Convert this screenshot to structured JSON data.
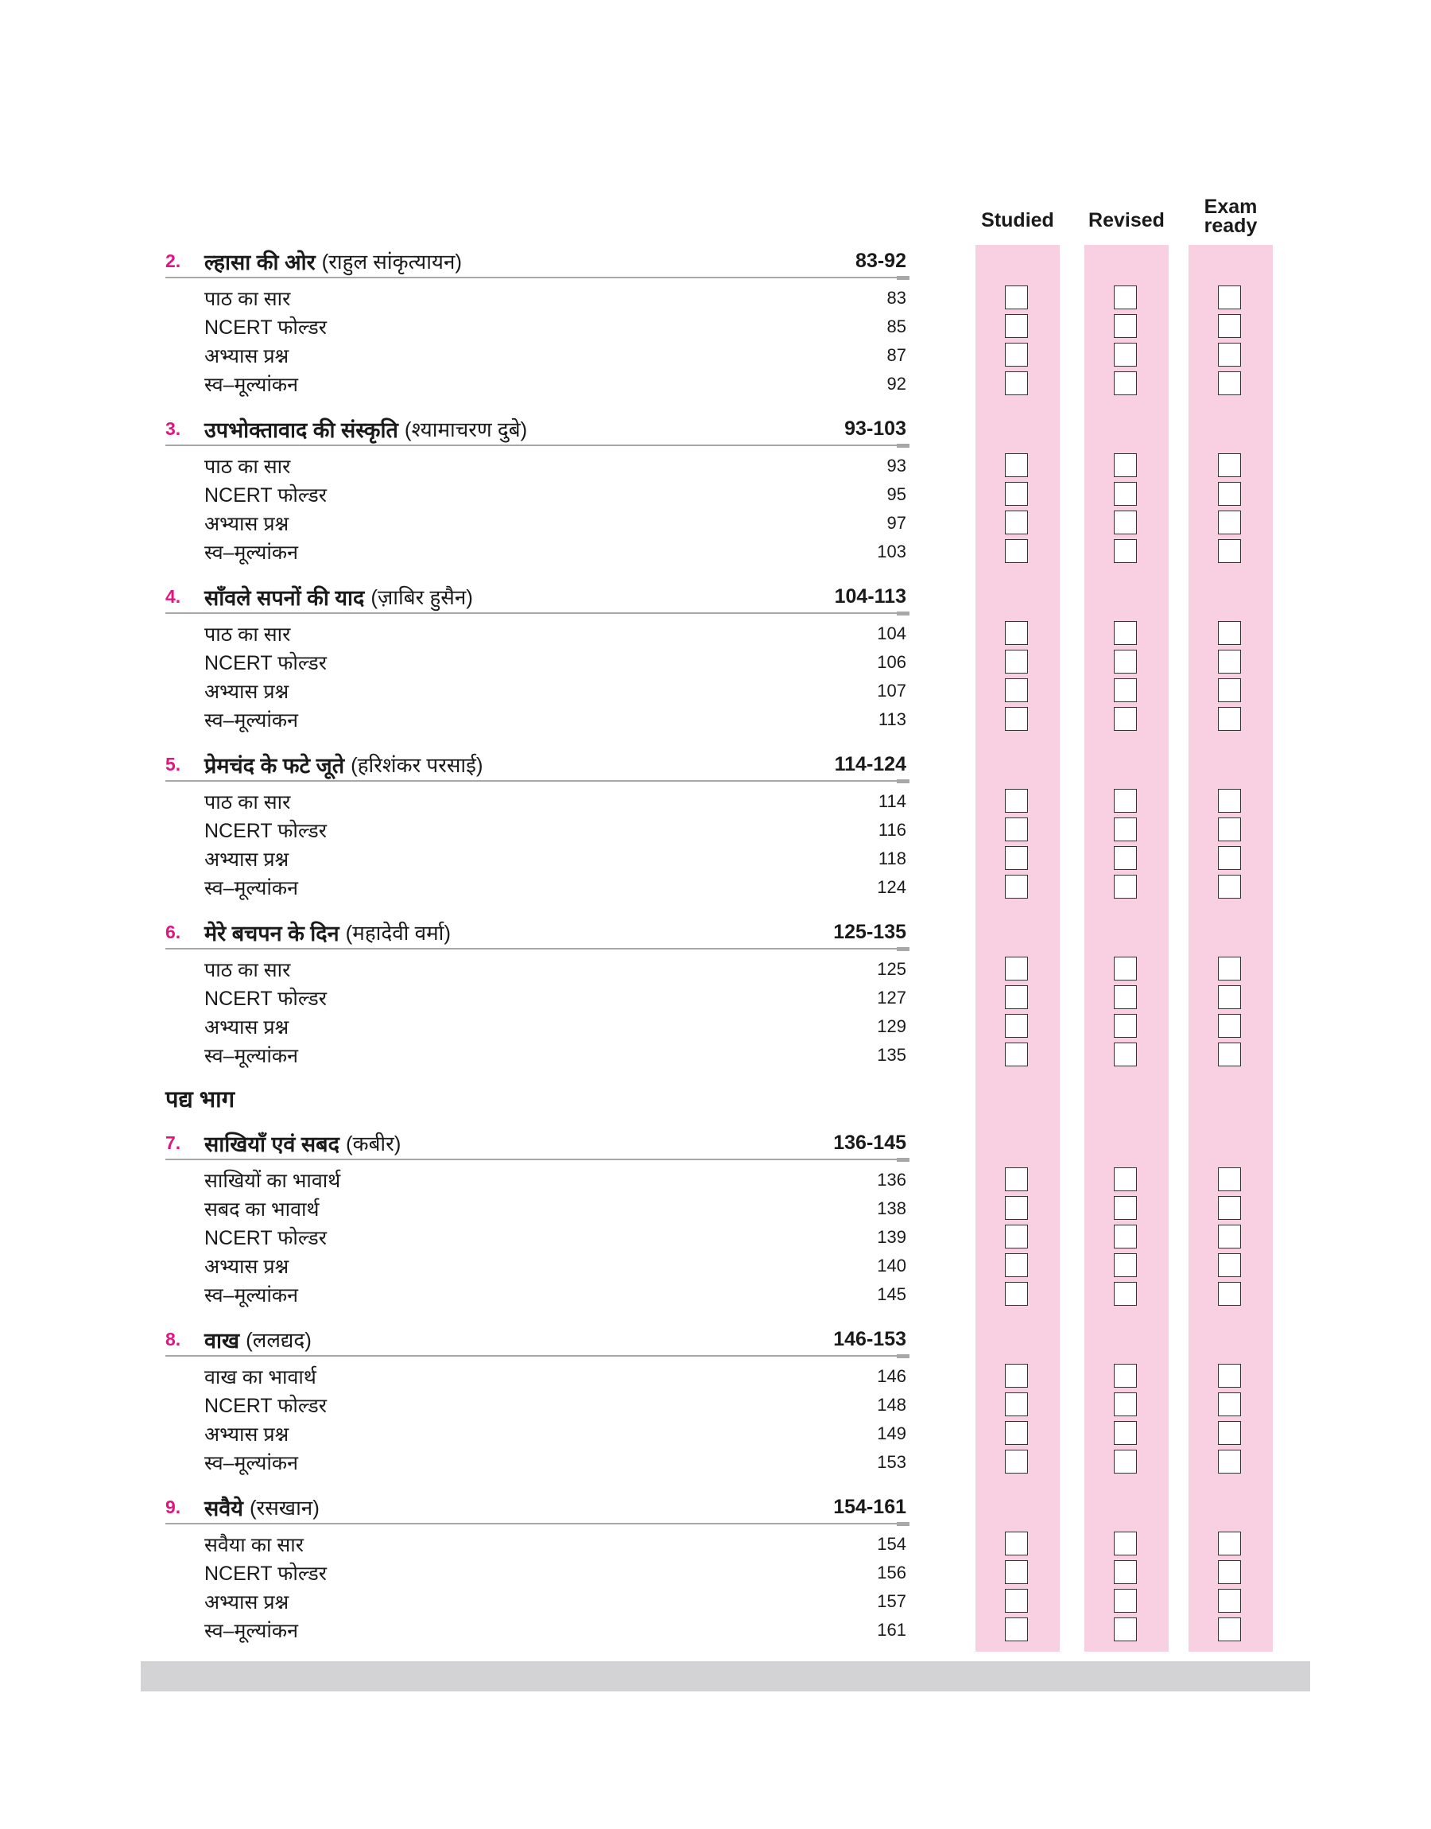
{
  "columns": {
    "studied": "Studied",
    "revised": "Revised",
    "exam_ready_1": "Exam",
    "exam_ready_2": "ready"
  },
  "colors": {
    "accent_number": "#e0157f",
    "column_bg": "#f8d0e1",
    "rule": "#a8a8a8",
    "footer_bar": "#d3d3d5"
  },
  "part_heading": "पद्य भाग",
  "sections": [
    {
      "number": "2.",
      "title": "ल्हासा की ओर",
      "author": "(राहुल सांकृत्यायन)",
      "pages": "83-92",
      "items": [
        {
          "label": "पाठ का सार",
          "page": "83"
        },
        {
          "label": "NCERT फोल्डर",
          "page": "85"
        },
        {
          "label": "अभ्यास प्रश्न",
          "page": "87"
        },
        {
          "label": "स्व–मूल्यांकन",
          "page": "92"
        }
      ]
    },
    {
      "number": "3.",
      "title": "उपभोक्तावाद की संस्कृति",
      "author": "(श्यामाचरण दुबे)",
      "pages": "93-103",
      "items": [
        {
          "label": "पाठ का सार",
          "page": "93"
        },
        {
          "label": "NCERT फोल्डर",
          "page": "95"
        },
        {
          "label": "अभ्यास प्रश्न",
          "page": "97"
        },
        {
          "label": "स्व–मूल्यांकन",
          "page": "103"
        }
      ]
    },
    {
      "number": "4.",
      "title": "साँवले सपनों की याद",
      "author": "(ज़ाबिर हुसैन)",
      "pages": "104-113",
      "items": [
        {
          "label": "पाठ का सार",
          "page": "104"
        },
        {
          "label": "NCERT फोल्डर",
          "page": "106"
        },
        {
          "label": "अभ्यास प्रश्न",
          "page": "107"
        },
        {
          "label": "स्व–मूल्यांकन",
          "page": "113"
        }
      ]
    },
    {
      "number": "5.",
      "title": "प्रेमचंद के फटे जूते",
      "author": "(हरिशंकर परसाई)",
      "pages": "114-124",
      "items": [
        {
          "label": "पाठ का सार",
          "page": "114"
        },
        {
          "label": "NCERT फोल्डर",
          "page": "116"
        },
        {
          "label": "अभ्यास प्रश्न",
          "page": "118"
        },
        {
          "label": "स्व–मूल्यांकन",
          "page": "124"
        }
      ]
    },
    {
      "number": "6.",
      "title": "मेरे बचपन के दिन",
      "author": "(महादेवी वर्मा)",
      "pages": "125-135",
      "items": [
        {
          "label": "पाठ का सार",
          "page": "125"
        },
        {
          "label": "NCERT फोल्डर",
          "page": "127"
        },
        {
          "label": "अभ्यास प्रश्न",
          "page": "129"
        },
        {
          "label": "स्व–मूल्यांकन",
          "page": "135"
        }
      ]
    },
    {
      "number": "7.",
      "title": "साखियाँ एवं सबद",
      "author": "(कबीर)",
      "pages": "136-145",
      "part_before": true,
      "items": [
        {
          "label": "साखियों का भावार्थ",
          "page": "136"
        },
        {
          "label": "सबद का भावार्थ",
          "page": "138"
        },
        {
          "label": "NCERT फोल्डर",
          "page": "139"
        },
        {
          "label": "अभ्यास प्रश्न",
          "page": "140"
        },
        {
          "label": "स्व–मूल्यांकन",
          "page": "145"
        }
      ]
    },
    {
      "number": "8.",
      "title": "वाख",
      "author": "(ललद्यद)",
      "pages": "146-153",
      "items": [
        {
          "label": "वाख का भावार्थ",
          "page": "146"
        },
        {
          "label": "NCERT फोल्डर",
          "page": "148"
        },
        {
          "label": "अभ्यास प्रश्न",
          "page": "149"
        },
        {
          "label": "स्व–मूल्यांकन",
          "page": "153"
        }
      ]
    },
    {
      "number": "9.",
      "title": "सवैये",
      "author": "(रसखान)",
      "pages": "154-161",
      "items": [
        {
          "label": "सवैया का सार",
          "page": "154"
        },
        {
          "label": "NCERT फोल्डर",
          "page": "156"
        },
        {
          "label": "अभ्यास प्रश्न",
          "page": "157"
        },
        {
          "label": "स्व–मूल्यांकन",
          "page": "161"
        }
      ]
    }
  ]
}
